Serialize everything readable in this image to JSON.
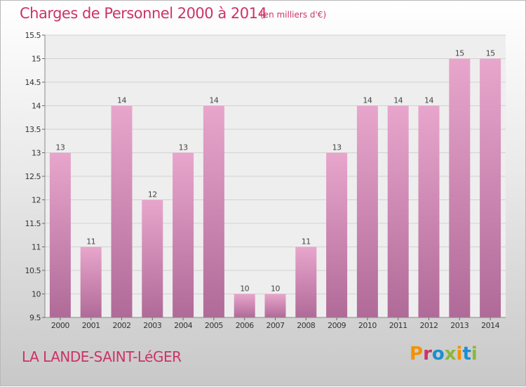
{
  "header": {
    "title": "Charges de Personnel 2000 à 2014",
    "subtitle": "(en milliers d'€)"
  },
  "footer": {
    "place": "LA LANDE-SAINT-LéGER",
    "logo": "Proxiti"
  },
  "colors": {
    "title": "#cc3366",
    "bar_top": "#e8a6cc",
    "bar_bottom": "#b06a98",
    "logo_letters": [
      "#f39200",
      "#cc3366",
      "#1a8fcf",
      "#8ab83a",
      "#f39200",
      "#1a8fcf",
      "#8ab83a"
    ]
  },
  "chart_data": {
    "type": "bar",
    "title": "Charges de Personnel 2000 à 2014",
    "subtitle": "(en milliers d'€)",
    "categories": [
      "2000",
      "2001",
      "2002",
      "2003",
      "2004",
      "2005",
      "2006",
      "2007",
      "2008",
      "2009",
      "2010",
      "2011",
      "2012",
      "2013",
      "2014"
    ],
    "values": [
      13,
      11,
      14,
      12,
      13,
      14,
      10,
      10,
      11,
      13,
      14,
      14,
      14,
      15,
      15
    ],
    "data_labels": [
      "13",
      "11",
      "14",
      "12",
      "13",
      "14",
      "10",
      "10",
      "11",
      "13",
      "14",
      "14",
      "14",
      "15",
      "15"
    ],
    "ylim": [
      9.5,
      15.5
    ],
    "yticks": [
      "9.5",
      "10",
      "10.5",
      "11",
      "11.5",
      "12",
      "12.5",
      "13",
      "13.5",
      "14",
      "14.5",
      "15",
      "15.5"
    ],
    "grid": true,
    "legend": "none"
  }
}
